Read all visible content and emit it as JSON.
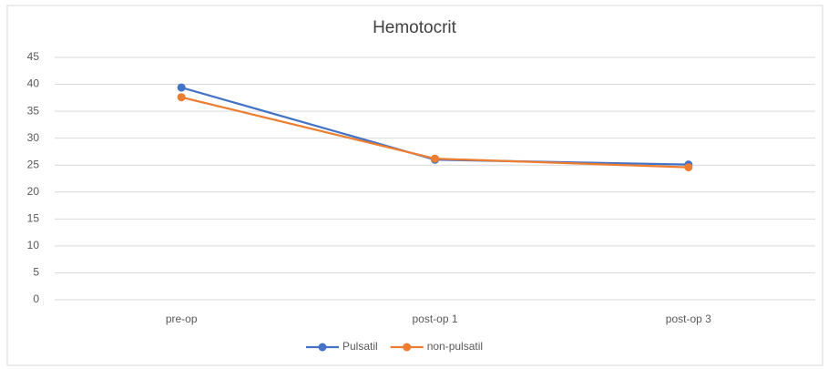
{
  "chart_data": {
    "type": "line",
    "title": "Hemotocrit",
    "categories": [
      "pre-op",
      "post-op 1",
      "post-op 3"
    ],
    "series": [
      {
        "name": "Pulsatil",
        "color": "#4472c4",
        "values": [
          39.4,
          26.0,
          25.1
        ]
      },
      {
        "name": "non-pulsatil",
        "color": "#ed7d31",
        "values": [
          37.6,
          26.2,
          24.6
        ]
      }
    ],
    "ylim": [
      0,
      45
    ],
    "yticks": [
      0,
      5,
      10,
      15,
      20,
      25,
      30,
      35,
      40,
      45
    ],
    "grid": true,
    "legend": "bottom"
  }
}
